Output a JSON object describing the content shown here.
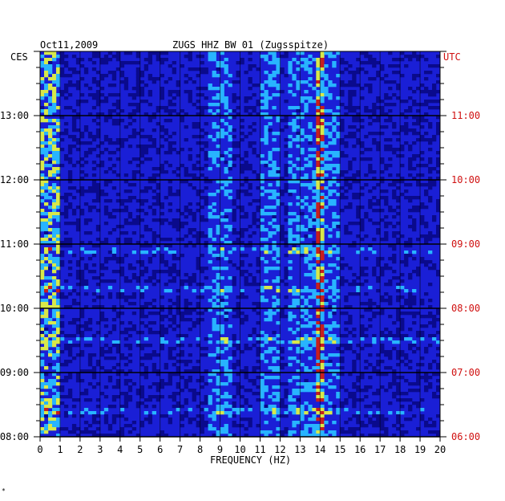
{
  "chart_data": {
    "type": "heatmap",
    "date": "Oct11,2009",
    "title": "ZUGS HHZ BW 01 (Zugsspitze)",
    "left_zone": "CES",
    "right_zone": "UTC",
    "xlabel": "FREQUENCY (HZ)",
    "xlim": [
      0,
      20
    ],
    "x_ticks": [
      "0",
      "1",
      "2",
      "3",
      "4",
      "5",
      "6",
      "7",
      "8",
      "9",
      "10",
      "11",
      "12",
      "13",
      "14",
      "15",
      "16",
      "17",
      "18",
      "19",
      "20"
    ],
    "left_time_ticks": [
      {
        "label": "13:00",
        "hours_from_bottom": 5
      },
      {
        "label": "12:00",
        "hours_from_bottom": 4
      },
      {
        "label": "11:00",
        "hours_from_bottom": 3
      },
      {
        "label": "10:00",
        "hours_from_bottom": 2
      },
      {
        "label": "09:00",
        "hours_from_bottom": 1
      },
      {
        "label": "08:00",
        "hours_from_bottom": 0
      }
    ],
    "right_time_ticks": [
      {
        "label": "11:00",
        "hours_from_bottom": 5
      },
      {
        "label": "10:00",
        "hours_from_bottom": 4
      },
      {
        "label": "09:00",
        "hours_from_bottom": 3
      },
      {
        "label": "08:00",
        "hours_from_bottom": 2
      },
      {
        "label": "07:00",
        "hours_from_bottom": 1
      },
      {
        "label": "06:00",
        "hours_from_bottom": 0
      }
    ],
    "time_span_hours": 6,
    "colors": {
      "background": "#1a1fd6",
      "low": "#0a0a8c",
      "mid": "#28b4ff",
      "high": "#d8e84a",
      "peak": "#c81e1e",
      "gridline": "#000000",
      "utc_text": "#d01010"
    },
    "bright_bands": [
      {
        "freq_range": [
          0.0,
          1.0
        ],
        "intensity": "high"
      },
      {
        "freq_range": [
          8.5,
          9.5
        ],
        "intensity": "medium"
      },
      {
        "freq_range": [
          11.0,
          12.0
        ],
        "intensity": "medium"
      },
      {
        "freq_range": [
          12.5,
          15.0
        ],
        "intensity": "medium"
      },
      {
        "freq_range": [
          13.8,
          14.1
        ],
        "intensity": "peak"
      }
    ],
    "strong_rows_hours_from_bottom": [
      2.3,
      2.9,
      1.5,
      0.4
    ]
  },
  "footer_mark": "*"
}
